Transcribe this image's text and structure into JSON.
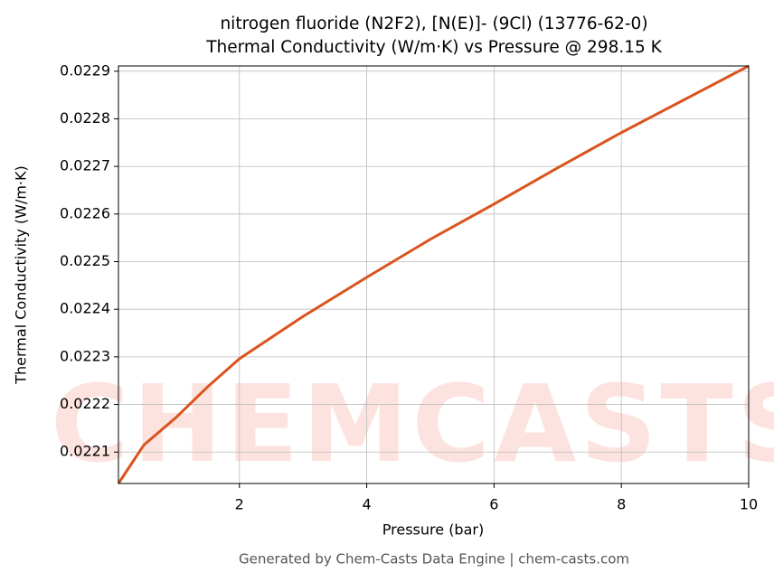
{
  "chart_data": {
    "type": "line",
    "title": "nitrogen fluoride (N2F2), [N(E)]- (9Cl) (13776-62-0)",
    "subtitle": "Thermal Conductivity (W/m·K) vs Pressure @ 298.15 K",
    "x_label": "Pressure (bar)",
    "y_label": "Thermal Conductivity (W/m·K)",
    "footer": "Generated by Chem-Casts Data Engine | chem-casts.com",
    "watermark": "CHEMCASTS",
    "x": [
      0.1,
      0.5,
      1,
      1.5,
      2,
      3,
      4,
      5,
      6,
      7,
      8,
      9,
      10
    ],
    "series": [
      {
        "name": "Thermal Conductivity",
        "color": "#d9541e",
        "values": [
          0.022034,
          0.022115,
          0.022172,
          0.022237,
          0.022296,
          0.022385,
          0.022467,
          0.022547,
          0.022621,
          0.022697,
          0.022771,
          0.022841,
          0.022911
        ]
      }
    ],
    "xlim": [
      0.1,
      10
    ],
    "ylim": [
      0.022034,
      0.022911
    ],
    "xticks": [
      2,
      4,
      6,
      8,
      10
    ],
    "yticks": [
      0.0221,
      0.0222,
      0.0223,
      0.0224,
      0.0225,
      0.0226,
      0.0227,
      0.0228,
      0.0229
    ],
    "grid": true
  }
}
